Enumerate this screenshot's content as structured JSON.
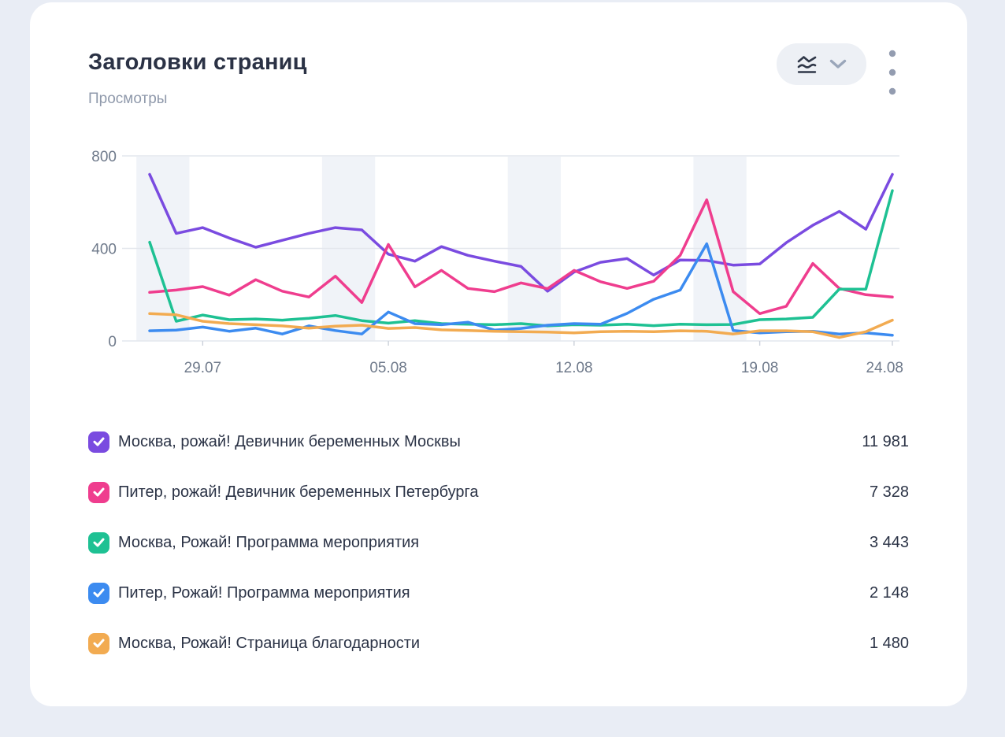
{
  "header": {
    "title": "Заголовки страниц",
    "metric": "Просмотры"
  },
  "controls": {
    "chart_type_button": "line-chart-type-selector",
    "menu_button": "widget-menu"
  },
  "chart_data": {
    "type": "line",
    "title": "Заголовки страниц",
    "ylabel": "Просмотры",
    "ylim": [
      0,
      800
    ],
    "yticks": [
      0,
      400,
      800
    ],
    "grid": true,
    "legend_position": "bottom",
    "x": [
      "27.07",
      "28.07",
      "29.07",
      "30.07",
      "31.07",
      "01.08",
      "02.08",
      "03.08",
      "04.08",
      "05.08",
      "06.08",
      "07.08",
      "08.08",
      "09.08",
      "10.08",
      "11.08",
      "12.08",
      "13.08",
      "14.08",
      "15.08",
      "16.08",
      "17.08",
      "18.08",
      "19.08",
      "20.08",
      "21.08",
      "22.08",
      "23.08",
      "24.08"
    ],
    "xtick_indices": [
      2,
      9,
      16,
      23,
      28
    ],
    "xtick_labels": [
      "29.07",
      "05.08",
      "12.08",
      "19.08",
      "24.08"
    ],
    "weekend_bands": [
      [
        0,
        1
      ],
      [
        7,
        8
      ],
      [
        14,
        15
      ],
      [
        21,
        22
      ]
    ],
    "colors": {
      "grid": "#e4e7ed",
      "band": "#f0f3f8",
      "axis_text": "#6f7a8b",
      "tick": "#cbd0da"
    },
    "series": [
      {
        "name": "Москва, рожай! Девичник беременных Москвы",
        "total": "11 981",
        "color": "#7a4be0",
        "values": [
          720,
          465,
          490,
          445,
          405,
          435,
          465,
          490,
          480,
          375,
          345,
          408,
          370,
          345,
          322,
          215,
          298,
          340,
          356,
          285,
          350,
          348,
          328,
          333,
          425,
          500,
          560,
          483,
          720
        ]
      },
      {
        "name": "Питер, рожай! Девичник беременных Петербурга",
        "total": "7 328",
        "color": "#ef3d8e",
        "values": [
          210,
          220,
          235,
          198,
          265,
          215,
          190,
          280,
          166,
          417,
          234,
          305,
          227,
          213,
          251,
          226,
          305,
          256,
          227,
          258,
          370,
          610,
          213,
          118,
          150,
          335,
          227,
          200,
          190
        ]
      },
      {
        "name": "Москва, Рожай! Программа мероприятия",
        "total": "3 443",
        "color": "#1ec193",
        "values": [
          427,
          85,
          112,
          92,
          95,
          90,
          98,
          110,
          88,
          77,
          88,
          75,
          72,
          70,
          75,
          65,
          70,
          68,
          72,
          66,
          72,
          70,
          71,
          92,
          95,
          102,
          224,
          224,
          650
        ]
      },
      {
        "name": "Питер, Рожай! Программа мероприятия",
        "total": "2 148",
        "color": "#3c8bf0",
        "values": [
          44,
          47,
          60,
          42,
          55,
          30,
          65,
          45,
          30,
          125,
          75,
          70,
          81,
          47,
          54,
          68,
          75,
          72,
          119,
          180,
          220,
          420,
          45,
          35,
          40,
          42,
          30,
          35,
          25
        ]
      },
      {
        "name": "Москва, Рожай! Страница благодарности",
        "total": "1 480",
        "color": "#f2ab51",
        "values": [
          118,
          113,
          85,
          75,
          70,
          65,
          55,
          64,
          68,
          54,
          58,
          48,
          45,
          42,
          40,
          38,
          35,
          40,
          42,
          40,
          44,
          42,
          30,
          44,
          44,
          40,
          15,
          40,
          90
        ]
      }
    ]
  }
}
